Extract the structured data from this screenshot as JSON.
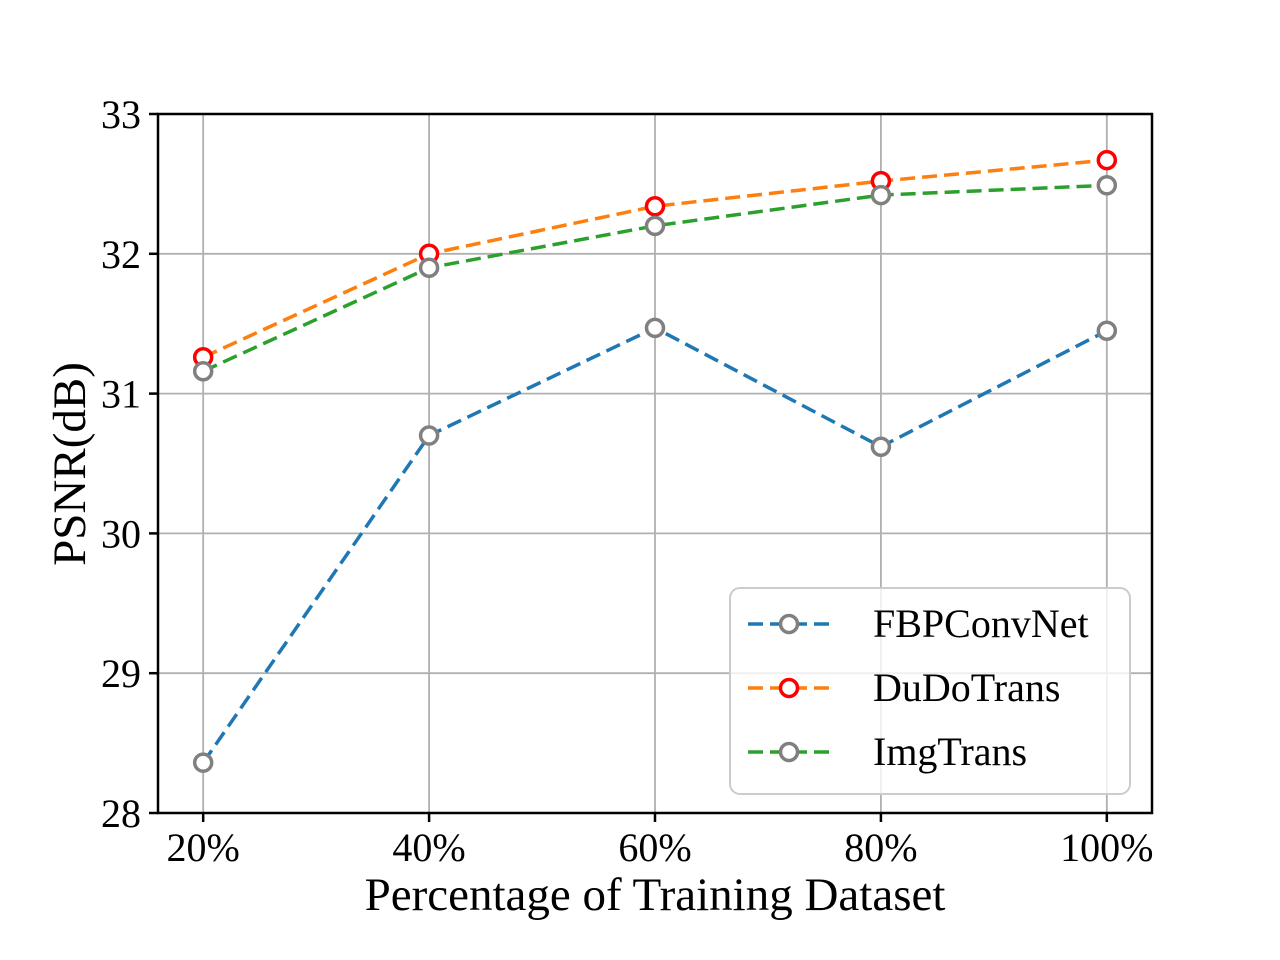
{
  "figure": {
    "background": "#ffffff"
  },
  "chart_data": {
    "type": "line",
    "title": "",
    "xlabel": "Percentage of Training Dataset",
    "ylabel": "PSNR(dB)",
    "categories": [
      "20%",
      "40%",
      "60%",
      "80%",
      "100%"
    ],
    "series": [
      {
        "name": "FBPConvNet",
        "line_color": "#1f77b4",
        "marker_edge_color": "#808080",
        "marker_face_color": "#ffffff",
        "values": [
          28.36,
          30.7,
          31.47,
          30.62,
          31.45
        ]
      },
      {
        "name": "DuDoTrans",
        "line_color": "#ff7f0e",
        "marker_edge_color": "#ff0000",
        "marker_face_color": "#ffffff",
        "values": [
          31.26,
          32.0,
          32.34,
          32.52,
          32.67
        ]
      },
      {
        "name": "ImgTrans",
        "line_color": "#2ca02c",
        "marker_edge_color": "#808080",
        "marker_face_color": "#ffffff",
        "values": [
          31.16,
          31.9,
          32.2,
          32.42,
          32.49
        ]
      }
    ],
    "ylim": [
      28,
      33
    ],
    "yticks": [
      "28",
      "29",
      "30",
      "31",
      "32",
      "33"
    ],
    "ytick_values": [
      28,
      29,
      30,
      31,
      32,
      33
    ],
    "line_style": "dashed",
    "marker": "circle",
    "grid": true,
    "grid_color": "#b0b0b0",
    "axis_color": "#000000",
    "legend": {
      "position": "lower right",
      "border_color": "#cccccc",
      "background": "rgba(255,255,255,0.8)",
      "labels": [
        "FBPConvNet",
        "DuDoTrans",
        "ImgTrans"
      ]
    }
  }
}
